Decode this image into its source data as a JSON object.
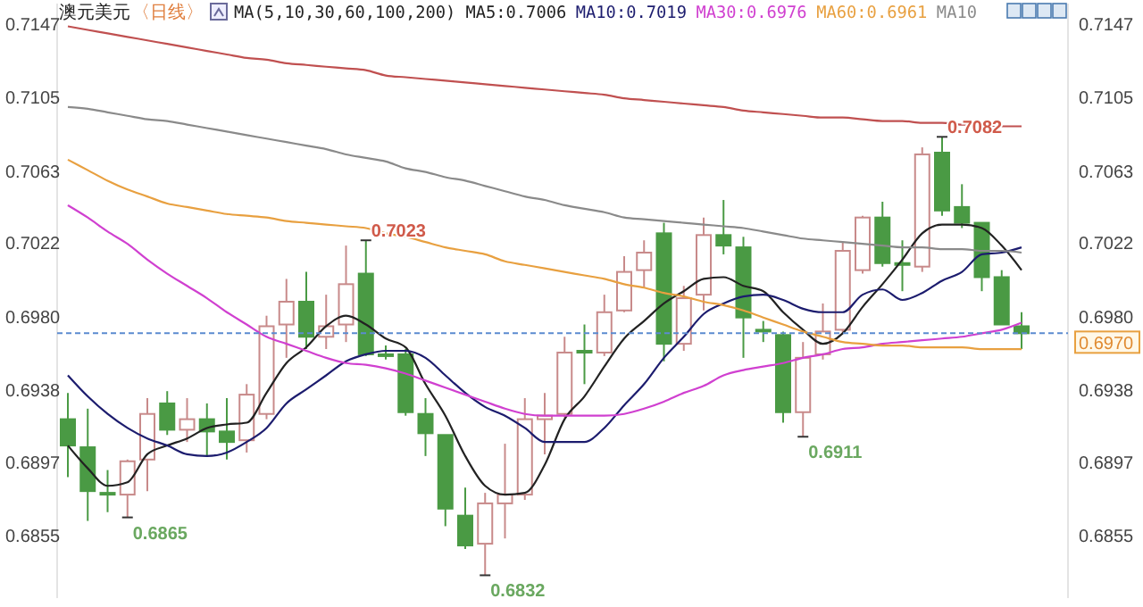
{
  "chart_data": {
    "type": "candlestick",
    "title": "澳元美元",
    "subtitle": "〈日线〉",
    "annotations": [
      "MA(5,10,30,60,100,200)",
      "0.7023",
      "0.6832",
      "0.6865",
      "0.6911",
      "0.7082"
    ],
    "categories": [
      null,
      null,
      null,
      null,
      null,
      null,
      null,
      null,
      null,
      null,
      null,
      null,
      null,
      null,
      null,
      null,
      null,
      null,
      null,
      null,
      null,
      null,
      null,
      null,
      null,
      null,
      null,
      null,
      null,
      null,
      null,
      null,
      null,
      null,
      null,
      null,
      null,
      null,
      null,
      null,
      null,
      null,
      null,
      null,
      null,
      null,
      null,
      null,
      null
    ],
    "ohlc": [
      [
        0.6921,
        0.6936,
        0.6888,
        0.6906
      ],
      [
        0.6905,
        0.6927,
        0.6863,
        0.688
      ],
      [
        0.6879,
        0.6892,
        0.6868,
        0.6878
      ],
      [
        0.6878,
        0.6898,
        0.6865,
        0.6897
      ],
      [
        0.6898,
        0.6933,
        0.688,
        0.6924
      ],
      [
        0.693,
        0.6937,
        0.6912,
        0.6915
      ],
      [
        0.6915,
        0.6933,
        0.6908,
        0.6921
      ],
      [
        0.6921,
        0.693,
        0.69,
        0.6914
      ],
      [
        0.6914,
        0.6933,
        0.6898,
        0.6908
      ],
      [
        0.6909,
        0.6941,
        0.6902,
        0.6935
      ],
      [
        0.6924,
        0.698,
        0.6921,
        0.6974
      ],
      [
        0.6975,
        0.7001,
        0.6956,
        0.6988
      ],
      [
        0.6988,
        0.7005,
        0.6961,
        0.6968
      ],
      [
        0.6968,
        0.6992,
        0.6961,
        0.6974
      ],
      [
        0.6975,
        0.702,
        0.6965,
        0.6998
      ],
      [
        0.7004,
        0.7023,
        0.6957,
        0.6958
      ],
      [
        0.6958,
        0.6963,
        0.6955,
        0.6957
      ],
      [
        0.6958,
        0.6961,
        0.6923,
        0.6925
      ],
      [
        0.6924,
        0.6933,
        0.69,
        0.6913
      ],
      [
        0.6912,
        0.6912,
        0.686,
        0.687
      ],
      [
        0.6866,
        0.6882,
        0.6847,
        0.6849
      ],
      [
        0.685,
        0.6879,
        0.6832,
        0.6873
      ],
      [
        0.6873,
        0.6907,
        0.6853,
        0.6878
      ],
      [
        0.6878,
        0.6933,
        0.6875,
        0.6921
      ],
      [
        0.6921,
        0.6936,
        0.6901,
        0.6923
      ],
      [
        0.6924,
        0.6968,
        0.6922,
        0.6959
      ],
      [
        0.696,
        0.6975,
        0.6941,
        0.6959
      ],
      [
        0.6959,
        0.6992,
        0.6957,
        0.6982
      ],
      [
        0.6983,
        0.7014,
        0.6982,
        0.7005
      ],
      [
        0.7006,
        0.7023,
        0.6996,
        0.7016
      ],
      [
        0.7027,
        0.7033,
        0.6954,
        0.6964
      ],
      [
        0.6964,
        0.6997,
        0.696,
        0.699
      ],
      [
        0.6992,
        0.7036,
        0.6983,
        0.7026
      ],
      [
        0.7026,
        0.7046,
        0.7015,
        0.702
      ],
      [
        0.7019,
        0.7025,
        0.6956,
        0.6979
      ],
      [
        0.6972,
        0.6977,
        0.6965,
        0.6971
      ],
      [
        0.6969,
        0.6971,
        0.6919,
        0.6925
      ],
      [
        0.6925,
        0.6965,
        0.6911,
        0.6956
      ],
      [
        0.6958,
        0.6987,
        0.6955,
        0.6971
      ],
      [
        0.6972,
        0.7022,
        0.697,
        0.7017
      ],
      [
        0.7006,
        0.7037,
        0.7004,
        0.7036
      ],
      [
        0.7036,
        0.7045,
        0.7008,
        0.701
      ],
      [
        0.701,
        0.7023,
        0.6994,
        0.7009
      ],
      [
        0.7008,
        0.7076,
        0.7005,
        0.7072
      ],
      [
        0.7073,
        0.7082,
        0.7037,
        0.704
      ],
      [
        0.7042,
        0.7055,
        0.703,
        0.7033
      ],
      [
        0.7033,
        0.7033,
        0.6994,
        0.7002
      ],
      [
        0.7002,
        0.7006,
        0.6975,
        0.6975
      ],
      [
        0.6974,
        0.6982,
        0.6961,
        0.697
      ]
    ],
    "colors": [
      "#4a9a44",
      "#4a9a44",
      "#4a9a44",
      "#c88a8a",
      "#c88a8a",
      "#4a9a44",
      "#c88a8a",
      "#4a9a44",
      "#4a9a44",
      "#c88a8a",
      "#c88a8a",
      "#c88a8a",
      "#4a9a44",
      "#c88a8a",
      "#c88a8a",
      "#4a9a44",
      "#4a9a44",
      "#4a9a44",
      "#4a9a44",
      "#4a9a44",
      "#4a9a44",
      "#c88a8a",
      "#c88a8a",
      "#c88a8a",
      "#c88a8a",
      "#c88a8a",
      "#4a9a44",
      "#c88a8a",
      "#c88a8a",
      "#c88a8a",
      "#4a9a44",
      "#c88a8a",
      "#c88a8a",
      "#4a9a44",
      "#4a9a44",
      "#4a9a44",
      "#4a9a44",
      "#c88a8a",
      "#c88a8a",
      "#c88a8a",
      "#c88a8a",
      "#4a9a44",
      "#4a9a44",
      "#c88a8a",
      "#4a9a44",
      "#4a9a44",
      "#4a9a44",
      "#4a9a44",
      "#4a9a44"
    ],
    "series": [
      {
        "type": "line",
        "name": "MA5:0.7006",
        "color": "#222222",
        "values": [
          0.6906,
          0.6893,
          0.6883,
          0.6885,
          0.6901,
          0.6906,
          0.691,
          0.6916,
          0.6918,
          0.6919,
          0.6936,
          0.6953,
          0.6962,
          0.6974,
          0.698,
          0.6975,
          0.6967,
          0.6962,
          0.6941,
          0.6923,
          0.69,
          0.6883,
          0.6878,
          0.6879,
          0.6895,
          0.6921,
          0.6934,
          0.6951,
          0.6967,
          0.6977,
          0.6987,
          0.6994,
          0.7001,
          0.7002,
          0.6997,
          0.6994,
          0.6982,
          0.6972,
          0.6964,
          0.697,
          0.6985,
          0.6998,
          0.7012,
          0.7027,
          0.7032,
          0.7032,
          0.703,
          0.702,
          0.7006
        ]
      },
      {
        "type": "line",
        "name": "MA10:0.7019",
        "color": "#1c1c6e",
        "values": [
          0.6946,
          0.6934,
          0.6924,
          0.6916,
          0.691,
          0.6906,
          0.6901,
          0.69,
          0.6902,
          0.6908,
          0.6916,
          0.693,
          0.6938,
          0.6946,
          0.6954,
          0.6958,
          0.696,
          0.696,
          0.6956,
          0.6946,
          0.6936,
          0.6928,
          0.6923,
          0.6916,
          0.6908,
          0.6908,
          0.6908,
          0.6916,
          0.6929,
          0.6941,
          0.6956,
          0.6968,
          0.6981,
          0.6987,
          0.6991,
          0.6992,
          0.6989,
          0.6984,
          0.6982,
          0.6982,
          0.6992,
          0.6995,
          0.6989,
          0.6993,
          0.7,
          0.7005,
          0.7015,
          0.7016,
          0.7019
        ]
      },
      {
        "type": "line",
        "name": "MA30:0.6976",
        "color": "#d040d0",
        "values": [
          0.7043,
          0.7036,
          0.7028,
          0.7021,
          0.7012,
          0.7004,
          0.6997,
          0.699,
          0.6982,
          0.6975,
          0.6968,
          0.6964,
          0.696,
          0.6956,
          0.6953,
          0.6952,
          0.695,
          0.6947,
          0.6943,
          0.6939,
          0.6935,
          0.6931,
          0.6927,
          0.6924,
          0.6923,
          0.6923,
          0.6923,
          0.6923,
          0.6924,
          0.6927,
          0.6931,
          0.6936,
          0.694,
          0.6946,
          0.6949,
          0.6951,
          0.6953,
          0.6956,
          0.6958,
          0.6961,
          0.6962,
          0.6964,
          0.6965,
          0.6966,
          0.6967,
          0.6968,
          0.697,
          0.6972,
          0.6976
        ]
      },
      {
        "type": "line",
        "name": "MA60:0.6961",
        "color": "#e8a040",
        "values": [
          0.7069,
          0.7063,
          0.7057,
          0.7052,
          0.7048,
          0.7044,
          0.7042,
          0.704,
          0.7038,
          0.7037,
          0.7036,
          0.7034,
          0.7033,
          0.7032,
          0.7031,
          0.703,
          0.7027,
          0.7025,
          0.7022,
          0.7019,
          0.7017,
          0.7015,
          0.7011,
          0.7009,
          0.7007,
          0.7005,
          0.7003,
          0.7001,
          0.6998,
          0.6996,
          0.6993,
          0.6991,
          0.6988,
          0.6986,
          0.6983,
          0.6979,
          0.6975,
          0.6971,
          0.6968,
          0.6965,
          0.6964,
          0.6963,
          0.6963,
          0.6962,
          0.6962,
          0.6962,
          0.6961,
          0.6961,
          0.6961
        ]
      },
      {
        "type": "line",
        "name": "MA10",
        "color": "#8a8a8a",
        "values": [
          0.7099,
          0.7098,
          0.7096,
          0.7094,
          0.7092,
          0.7091,
          0.7089,
          0.7087,
          0.7085,
          0.7083,
          0.7081,
          0.7079,
          0.7077,
          0.7075,
          0.7072,
          0.707,
          0.7068,
          0.7064,
          0.7062,
          0.7059,
          0.7057,
          0.7054,
          0.7051,
          0.7048,
          0.7046,
          0.7043,
          0.7041,
          0.7039,
          0.7036,
          0.7035,
          0.7034,
          0.7033,
          0.7032,
          0.7031,
          0.703,
          0.7028,
          0.7026,
          0.7024,
          0.7023,
          0.7022,
          0.7021,
          0.702,
          0.7019,
          0.7019,
          0.7018,
          0.7018,
          0.7017,
          0.7017,
          0.7016
        ]
      },
      {
        "type": "line",
        "color": "#c05050",
        "values": [
          0.7145,
          0.7143,
          0.7141,
          0.7139,
          0.7137,
          0.7135,
          0.7133,
          0.7131,
          0.7129,
          0.7127,
          0.7126,
          0.7124,
          0.7123,
          0.7122,
          0.7121,
          0.712,
          0.7117,
          0.7116,
          0.7115,
          0.7114,
          0.7113,
          0.7112,
          0.7111,
          0.711,
          0.7109,
          0.7108,
          0.7107,
          0.7106,
          0.7104,
          0.7103,
          0.7102,
          0.7101,
          0.71,
          0.7099,
          0.7097,
          0.7096,
          0.7095,
          0.7094,
          0.7093,
          0.7093,
          0.7092,
          0.7091,
          0.7091,
          0.709,
          0.709,
          0.7089,
          0.7089,
          0.7088,
          0.7088
        ]
      }
    ],
    "ylim": [
      0.6819,
      0.7158
    ],
    "yticks": [
      0.7147,
      0.7105,
      0.7063,
      0.7022,
      {
        "value": 0.698,
        "label": "0.6980"
      },
      0.6938,
      0.6897,
      0.6855
    ],
    "y2lim": [
      0.6819,
      0.7158
    ],
    "y2ticks": [
      0.7147,
      0.7105,
      0.7063,
      0.7022,
      {
        "value": 0.698,
        "label": "0.6980"
      },
      0.6938,
      0.6897,
      0.6855
    ],
    "ref_lines": [
      {
        "axis": "y2",
        "value": 0.697,
        "label": "0.6970",
        "color": "#5b8bd0",
        "line_style": "dashed"
      }
    ],
    "legend": "top",
    "grid": false,
    "tick_labels": "y"
  }
}
